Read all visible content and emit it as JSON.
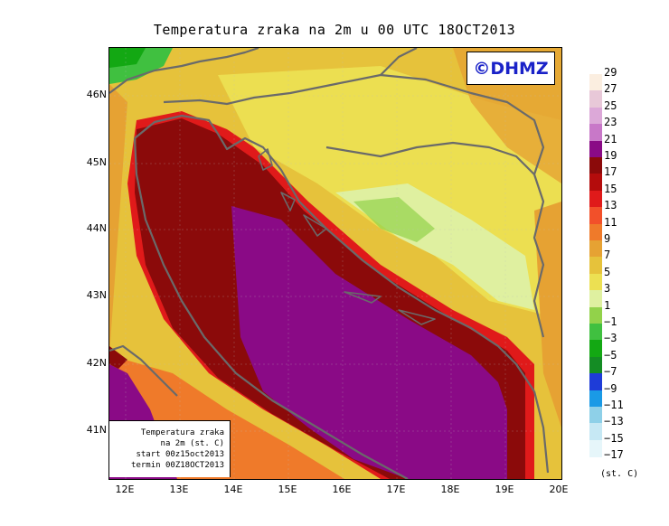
{
  "title": "Temperatura zraka na 2m u 00 UTC 18OCT2013",
  "logo": "©DHMZ",
  "info_box": [
    "Temperatura zraka",
    "na 2m (st. C)",
    "start 00z15oct2013",
    "termin 00Z18OCT2013"
  ],
  "lat_labels": [
    "46N",
    "45N",
    "44N",
    "43N",
    "42N",
    "41N"
  ],
  "lon_labels": [
    "12E",
    "13E",
    "14E",
    "15E",
    "16E",
    "17E",
    "18E",
    "19E",
    "20E"
  ],
  "colorbar": {
    "unit": "(st. C)",
    "labels": [
      "29",
      "27",
      "25",
      "23",
      "21",
      "19",
      "17",
      "15",
      "13",
      "11",
      "9",
      "7",
      "5",
      "3",
      "1",
      "−1",
      "−3",
      "−5",
      "−7",
      "−9",
      "−11",
      "−13",
      "−15",
      "−17"
    ],
    "colors": [
      "#fbeee0",
      "#e8c8d8",
      "#dca8d8",
      "#c878c8",
      "#8a0a86",
      "#8b0a0a",
      "#b40c0c",
      "#e01a1a",
      "#f2502a",
      "#ef7a2a",
      "#e6a233",
      "#e6c23b",
      "#ece052",
      "#dff0a0",
      "#92d24a",
      "#40c040",
      "#13a813",
      "#148c24",
      "#1e3cd8",
      "#1a9ae6",
      "#8ed0e8",
      "#c6e8f4",
      "#e6f6fa"
    ]
  },
  "colors": {
    "sea_warm": "#8a0a86",
    "coast_hot": "#8b0a0a",
    "land_mild": "#e6c23b",
    "land_cool": "#ece052",
    "land_cold": "#92d24a",
    "border": "#6a6a6a",
    "logo_text": "#1a22c8"
  }
}
